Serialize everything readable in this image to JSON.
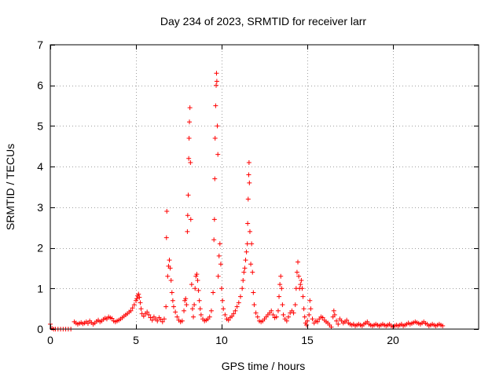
{
  "chart_data": {
    "type": "scatter",
    "title": "Day 234 of 2023, SRMTID for receiver larr",
    "xlabel": "GPS time / hours",
    "ylabel": "SRMTID / TECUs",
    "xlim": [
      0,
      25
    ],
    "ylim": [
      0,
      7
    ],
    "xticks": [
      0,
      5,
      10,
      15,
      20
    ],
    "yticks": [
      0,
      1,
      2,
      3,
      4,
      5,
      6,
      7
    ],
    "xtick_labels": [
      "0",
      "5",
      "10",
      "15",
      "20"
    ],
    "ytick_labels": [
      "0",
      "1",
      "2",
      "3",
      "4",
      "5",
      "6",
      "7"
    ],
    "grid": true,
    "marker": "plus",
    "color": "#ff0000",
    "series": [
      {
        "name": "SRMTID",
        "points": [
          [
            0.0,
            0.12
          ],
          [
            0.1,
            0.02
          ],
          [
            0.2,
            0.0
          ],
          [
            0.3,
            0.0
          ],
          [
            0.45,
            0.0
          ],
          [
            0.6,
            0.0
          ],
          [
            0.75,
            0.0
          ],
          [
            0.9,
            0.0
          ],
          [
            1.05,
            0.0
          ],
          [
            1.2,
            0.0
          ],
          [
            1.4,
            0.18
          ],
          [
            1.5,
            0.15
          ],
          [
            1.6,
            0.12
          ],
          [
            1.7,
            0.14
          ],
          [
            1.8,
            0.16
          ],
          [
            1.9,
            0.13
          ],
          [
            2.0,
            0.15
          ],
          [
            2.1,
            0.18
          ],
          [
            2.2,
            0.14
          ],
          [
            2.3,
            0.2
          ],
          [
            2.4,
            0.16
          ],
          [
            2.5,
            0.12
          ],
          [
            2.6,
            0.15
          ],
          [
            2.7,
            0.19
          ],
          [
            2.8,
            0.22
          ],
          [
            2.9,
            0.18
          ],
          [
            3.0,
            0.2
          ],
          [
            3.1,
            0.24
          ],
          [
            3.2,
            0.27
          ],
          [
            3.3,
            0.25
          ],
          [
            3.4,
            0.3
          ],
          [
            3.5,
            0.28
          ],
          [
            3.6,
            0.26
          ],
          [
            3.7,
            0.2
          ],
          [
            3.8,
            0.18
          ],
          [
            3.9,
            0.2
          ],
          [
            4.0,
            0.22
          ],
          [
            4.1,
            0.25
          ],
          [
            4.2,
            0.28
          ],
          [
            4.3,
            0.32
          ],
          [
            4.4,
            0.35
          ],
          [
            4.5,
            0.38
          ],
          [
            4.6,
            0.42
          ],
          [
            4.7,
            0.45
          ],
          [
            4.8,
            0.52
          ],
          [
            4.9,
            0.6
          ],
          [
            5.0,
            0.7
          ],
          [
            5.05,
            0.75
          ],
          [
            5.1,
            0.82
          ],
          [
            5.15,
            0.86
          ],
          [
            5.2,
            0.78
          ],
          [
            5.25,
            0.65
          ],
          [
            5.3,
            0.5
          ],
          [
            5.35,
            0.38
          ],
          [
            5.45,
            0.32
          ],
          [
            5.55,
            0.38
          ],
          [
            5.65,
            0.42
          ],
          [
            5.75,
            0.35
          ],
          [
            5.85,
            0.28
          ],
          [
            5.95,
            0.22
          ],
          [
            6.05,
            0.3
          ],
          [
            6.15,
            0.25
          ],
          [
            6.25,
            0.2
          ],
          [
            6.35,
            0.28
          ],
          [
            6.45,
            0.24
          ],
          [
            6.55,
            0.18
          ],
          [
            6.65,
            0.25
          ],
          [
            6.75,
            0.55
          ],
          [
            6.78,
            2.25
          ],
          [
            6.8,
            2.9
          ],
          [
            6.85,
            1.3
          ],
          [
            6.9,
            1.55
          ],
          [
            6.95,
            1.7
          ],
          [
            7.0,
            1.5
          ],
          [
            7.05,
            1.2
          ],
          [
            7.1,
            0.9
          ],
          [
            7.15,
            0.7
          ],
          [
            7.2,
            0.55
          ],
          [
            7.3,
            0.42
          ],
          [
            7.4,
            0.3
          ],
          [
            7.5,
            0.22
          ],
          [
            7.6,
            0.18
          ],
          [
            7.7,
            0.2
          ],
          [
            7.8,
            0.45
          ],
          [
            7.85,
            0.7
          ],
          [
            7.9,
            0.75
          ],
          [
            7.95,
            0.6
          ],
          [
            8.0,
            2.4
          ],
          [
            8.02,
            2.8
          ],
          [
            8.05,
            3.3
          ],
          [
            8.08,
            4.2
          ],
          [
            8.1,
            4.7
          ],
          [
            8.12,
            5.1
          ],
          [
            8.15,
            5.45
          ],
          [
            8.18,
            4.1
          ],
          [
            8.2,
            2.7
          ],
          [
            8.25,
            1.1
          ],
          [
            8.3,
            0.5
          ],
          [
            8.35,
            0.3
          ],
          [
            8.4,
            0.6
          ],
          [
            8.45,
            1.0
          ],
          [
            8.5,
            1.3
          ],
          [
            8.55,
            1.35
          ],
          [
            8.6,
            1.2
          ],
          [
            8.65,
            0.95
          ],
          [
            8.7,
            0.7
          ],
          [
            8.75,
            0.5
          ],
          [
            8.8,
            0.35
          ],
          [
            8.9,
            0.25
          ],
          [
            9.0,
            0.2
          ],
          [
            9.1,
            0.22
          ],
          [
            9.2,
            0.25
          ],
          [
            9.3,
            0.3
          ],
          [
            9.4,
            0.45
          ],
          [
            9.5,
            0.9
          ],
          [
            9.55,
            2.2
          ],
          [
            9.58,
            2.7
          ],
          [
            9.6,
            3.7
          ],
          [
            9.62,
            4.7
          ],
          [
            9.65,
            5.5
          ],
          [
            9.68,
            6.0
          ],
          [
            9.7,
            6.3
          ],
          [
            9.72,
            6.1
          ],
          [
            9.75,
            5.0
          ],
          [
            9.78,
            4.3
          ],
          [
            9.8,
            1.3
          ],
          [
            9.85,
            1.8
          ],
          [
            9.9,
            2.1
          ],
          [
            9.95,
            1.6
          ],
          [
            10.0,
            1.0
          ],
          [
            10.05,
            0.7
          ],
          [
            10.1,
            0.5
          ],
          [
            10.2,
            0.35
          ],
          [
            10.3,
            0.25
          ],
          [
            10.4,
            0.22
          ],
          [
            10.5,
            0.28
          ],
          [
            10.6,
            0.32
          ],
          [
            10.7,
            0.38
          ],
          [
            10.8,
            0.45
          ],
          [
            10.9,
            0.55
          ],
          [
            11.0,
            0.65
          ],
          [
            11.1,
            0.8
          ],
          [
            11.2,
            1.0
          ],
          [
            11.25,
            1.2
          ],
          [
            11.3,
            1.4
          ],
          [
            11.35,
            1.5
          ],
          [
            11.4,
            1.7
          ],
          [
            11.45,
            1.9
          ],
          [
            11.5,
            2.1
          ],
          [
            11.52,
            2.6
          ],
          [
            11.55,
            3.2
          ],
          [
            11.58,
            3.8
          ],
          [
            11.6,
            4.1
          ],
          [
            11.62,
            3.6
          ],
          [
            11.65,
            2.4
          ],
          [
            11.7,
            1.6
          ],
          [
            11.75,
            2.1
          ],
          [
            11.8,
            1.4
          ],
          [
            11.85,
            0.9
          ],
          [
            11.9,
            0.6
          ],
          [
            12.0,
            0.4
          ],
          [
            12.1,
            0.3
          ],
          [
            12.2,
            0.2
          ],
          [
            12.3,
            0.18
          ],
          [
            12.4,
            0.2
          ],
          [
            12.5,
            0.25
          ],
          [
            12.6,
            0.3
          ],
          [
            12.7,
            0.35
          ],
          [
            12.8,
            0.4
          ],
          [
            12.9,
            0.45
          ],
          [
            13.0,
            0.35
          ],
          [
            13.1,
            0.28
          ],
          [
            13.2,
            0.3
          ],
          [
            13.3,
            0.45
          ],
          [
            13.35,
            0.8
          ],
          [
            13.4,
            1.1
          ],
          [
            13.45,
            1.3
          ],
          [
            13.5,
            1.0
          ],
          [
            13.55,
            0.6
          ],
          [
            13.6,
            0.35
          ],
          [
            13.7,
            0.25
          ],
          [
            13.8,
            0.2
          ],
          [
            13.9,
            0.3
          ],
          [
            14.0,
            0.4
          ],
          [
            14.1,
            0.45
          ],
          [
            14.2,
            0.4
          ],
          [
            14.3,
            0.6
          ],
          [
            14.35,
            1.0
          ],
          [
            14.4,
            1.4
          ],
          [
            14.45,
            1.65
          ],
          [
            14.5,
            1.3
          ],
          [
            14.55,
            1.0
          ],
          [
            14.6,
            1.1
          ],
          [
            14.65,
            1.2
          ],
          [
            14.7,
            1.0
          ],
          [
            14.75,
            0.8
          ],
          [
            14.8,
            0.5
          ],
          [
            14.85,
            0.3
          ],
          [
            14.9,
            0.15
          ],
          [
            14.95,
            0.1
          ],
          [
            15.0,
            0.2
          ],
          [
            15.1,
            0.35
          ],
          [
            15.15,
            0.7
          ],
          [
            15.2,
            0.5
          ],
          [
            15.3,
            0.25
          ],
          [
            15.4,
            0.15
          ],
          [
            15.5,
            0.2
          ],
          [
            15.6,
            0.18
          ],
          [
            15.7,
            0.25
          ],
          [
            15.8,
            0.3
          ],
          [
            15.9,
            0.28
          ],
          [
            16.0,
            0.22
          ],
          [
            16.1,
            0.18
          ],
          [
            16.2,
            0.15
          ],
          [
            16.3,
            0.1
          ],
          [
            16.4,
            0.05
          ],
          [
            16.5,
            0.3
          ],
          [
            16.55,
            0.45
          ],
          [
            16.6,
            0.35
          ],
          [
            16.7,
            0.2
          ],
          [
            16.8,
            0.12
          ],
          [
            16.9,
            0.25
          ],
          [
            17.0,
            0.2
          ],
          [
            17.1,
            0.15
          ],
          [
            17.2,
            0.18
          ],
          [
            17.3,
            0.22
          ],
          [
            17.4,
            0.15
          ],
          [
            17.5,
            0.12
          ],
          [
            17.6,
            0.1
          ],
          [
            17.7,
            0.12
          ],
          [
            17.8,
            0.08
          ],
          [
            17.9,
            0.1
          ],
          [
            18.0,
            0.12
          ],
          [
            18.1,
            0.1
          ],
          [
            18.2,
            0.08
          ],
          [
            18.3,
            0.12
          ],
          [
            18.4,
            0.15
          ],
          [
            18.5,
            0.18
          ],
          [
            18.6,
            0.12
          ],
          [
            18.7,
            0.1
          ],
          [
            18.8,
            0.08
          ],
          [
            18.9,
            0.1
          ],
          [
            19.0,
            0.12
          ],
          [
            19.1,
            0.1
          ],
          [
            19.2,
            0.08
          ],
          [
            19.3,
            0.1
          ],
          [
            19.4,
            0.12
          ],
          [
            19.5,
            0.1
          ],
          [
            19.6,
            0.08
          ],
          [
            19.7,
            0.1
          ],
          [
            19.8,
            0.12
          ],
          [
            19.9,
            0.08
          ],
          [
            20.0,
            0.06
          ],
          [
            20.1,
            0.08
          ],
          [
            20.2,
            0.1
          ],
          [
            20.3,
            0.08
          ],
          [
            20.4,
            0.1
          ],
          [
            20.5,
            0.12
          ],
          [
            20.6,
            0.08
          ],
          [
            20.7,
            0.1
          ],
          [
            20.8,
            0.12
          ],
          [
            20.9,
            0.15
          ],
          [
            21.0,
            0.12
          ],
          [
            21.1,
            0.14
          ],
          [
            21.2,
            0.16
          ],
          [
            21.3,
            0.18
          ],
          [
            21.4,
            0.16
          ],
          [
            21.5,
            0.14
          ],
          [
            21.6,
            0.12
          ],
          [
            21.7,
            0.15
          ],
          [
            21.8,
            0.18
          ],
          [
            21.9,
            0.14
          ],
          [
            22.0,
            0.12
          ],
          [
            22.1,
            0.08
          ],
          [
            22.2,
            0.1
          ],
          [
            22.3,
            0.12
          ],
          [
            22.4,
            0.1
          ],
          [
            22.5,
            0.08
          ],
          [
            22.6,
            0.1
          ],
          [
            22.7,
            0.12
          ],
          [
            22.8,
            0.1
          ],
          [
            22.9,
            0.08
          ]
        ]
      }
    ]
  }
}
